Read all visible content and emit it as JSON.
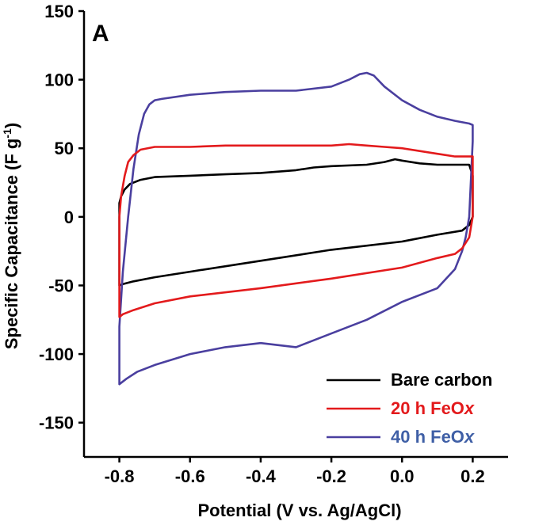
{
  "chart_data": {
    "type": "line",
    "panel_label": "A",
    "xlabel": "Potential (V vs. Ag/AgCl)",
    "ylabel": "Specific Capacitance (F g",
    "ylabel_sup": "-1",
    "ylabel_close": ")",
    "xlim": [
      -0.9,
      0.3
    ],
    "ylim": [
      -175,
      150
    ],
    "x_ticks": [
      -0.8,
      -0.6,
      -0.4,
      -0.2,
      0.0,
      0.2
    ],
    "x_tick_labels": [
      "-0.8",
      "-0.6",
      "-0.4",
      "-0.2",
      "0.0",
      "0.2"
    ],
    "y_ticks": [
      -150,
      -100,
      -50,
      0,
      50,
      100,
      150
    ],
    "y_tick_labels": [
      "-150",
      "-100",
      "-50",
      "0",
      "50",
      "100",
      "150"
    ],
    "legend_position": "bottom-right",
    "series": [
      {
        "name": "Bare carbon",
        "legend_plain": "Bare carbon",
        "legend_italic": "",
        "color": "#000000",
        "label_color": "#000000",
        "x": [
          -0.8,
          -0.8,
          -0.795,
          -0.785,
          -0.77,
          -0.74,
          -0.7,
          -0.6,
          -0.5,
          -0.4,
          -0.3,
          -0.25,
          -0.2,
          -0.1,
          -0.05,
          -0.02,
          0.0,
          0.05,
          0.1,
          0.15,
          0.19,
          0.2,
          0.2,
          0.19,
          0.17,
          0.1,
          0.0,
          -0.2,
          -0.4,
          -0.6,
          -0.7,
          -0.76,
          -0.79,
          -0.8,
          -0.8
        ],
        "y": [
          5,
          10,
          15,
          20,
          24,
          27,
          29,
          30,
          31,
          32,
          34,
          36,
          37,
          38,
          40,
          42,
          41,
          39,
          38,
          38,
          38,
          30,
          0,
          -6,
          -10,
          -13,
          -18,
          -24,
          -32,
          -40,
          -44,
          -47,
          -49,
          -50,
          5
        ]
      },
      {
        "name": "20 h FeOx",
        "legend_plain": "20 h FeO",
        "legend_italic": "x",
        "color": "#e31a1c",
        "label_color": "#e31a1c",
        "x": [
          -0.8,
          -0.8,
          -0.795,
          -0.785,
          -0.775,
          -0.76,
          -0.74,
          -0.7,
          -0.6,
          -0.5,
          -0.4,
          -0.3,
          -0.2,
          -0.15,
          -0.1,
          -0.05,
          0.0,
          0.1,
          0.15,
          0.19,
          0.2,
          0.2,
          0.19,
          0.17,
          0.15,
          0.1,
          0.0,
          -0.2,
          -0.4,
          -0.6,
          -0.7,
          -0.76,
          -0.79,
          -0.8,
          -0.8
        ],
        "y": [
          -25,
          0,
          15,
          30,
          40,
          45,
          49,
          51,
          51,
          52,
          52,
          52,
          52,
          53,
          52,
          51,
          50,
          46,
          44,
          44,
          44,
          0,
          -15,
          -23,
          -27,
          -30,
          -37,
          -45,
          -52,
          -58,
          -63,
          -68,
          -71,
          -73,
          -25
        ]
      },
      {
        "name": "40 h FeOx",
        "legend_plain": "40 h FeO",
        "legend_italic": "x",
        "color": "#4a3f9f",
        "label_color": "#3f5fa6",
        "x": [
          -0.8,
          -0.8,
          -0.79,
          -0.775,
          -0.76,
          -0.745,
          -0.73,
          -0.715,
          -0.7,
          -0.68,
          -0.6,
          -0.5,
          -0.4,
          -0.3,
          -0.2,
          -0.15,
          -0.12,
          -0.1,
          -0.08,
          -0.05,
          0.0,
          0.05,
          0.1,
          0.15,
          0.19,
          0.2,
          0.2,
          0.19,
          0.18,
          0.17,
          0.15,
          0.1,
          0.0,
          -0.1,
          -0.2,
          -0.3,
          -0.4,
          -0.5,
          -0.6,
          -0.7,
          -0.75,
          -0.78,
          -0.8,
          -0.8
        ],
        "y": [
          -115,
          -80,
          -40,
          0,
          35,
          60,
          75,
          82,
          85,
          86,
          89,
          91,
          92,
          92,
          95,
          100,
          104,
          105,
          103,
          95,
          85,
          78,
          73,
          70,
          68,
          67,
          55,
          0,
          -15,
          -25,
          -38,
          -52,
          -62,
          -75,
          -85,
          -95,
          -92,
          -95,
          -100,
          -108,
          -113,
          -118,
          -122,
          -115
        ]
      }
    ]
  }
}
